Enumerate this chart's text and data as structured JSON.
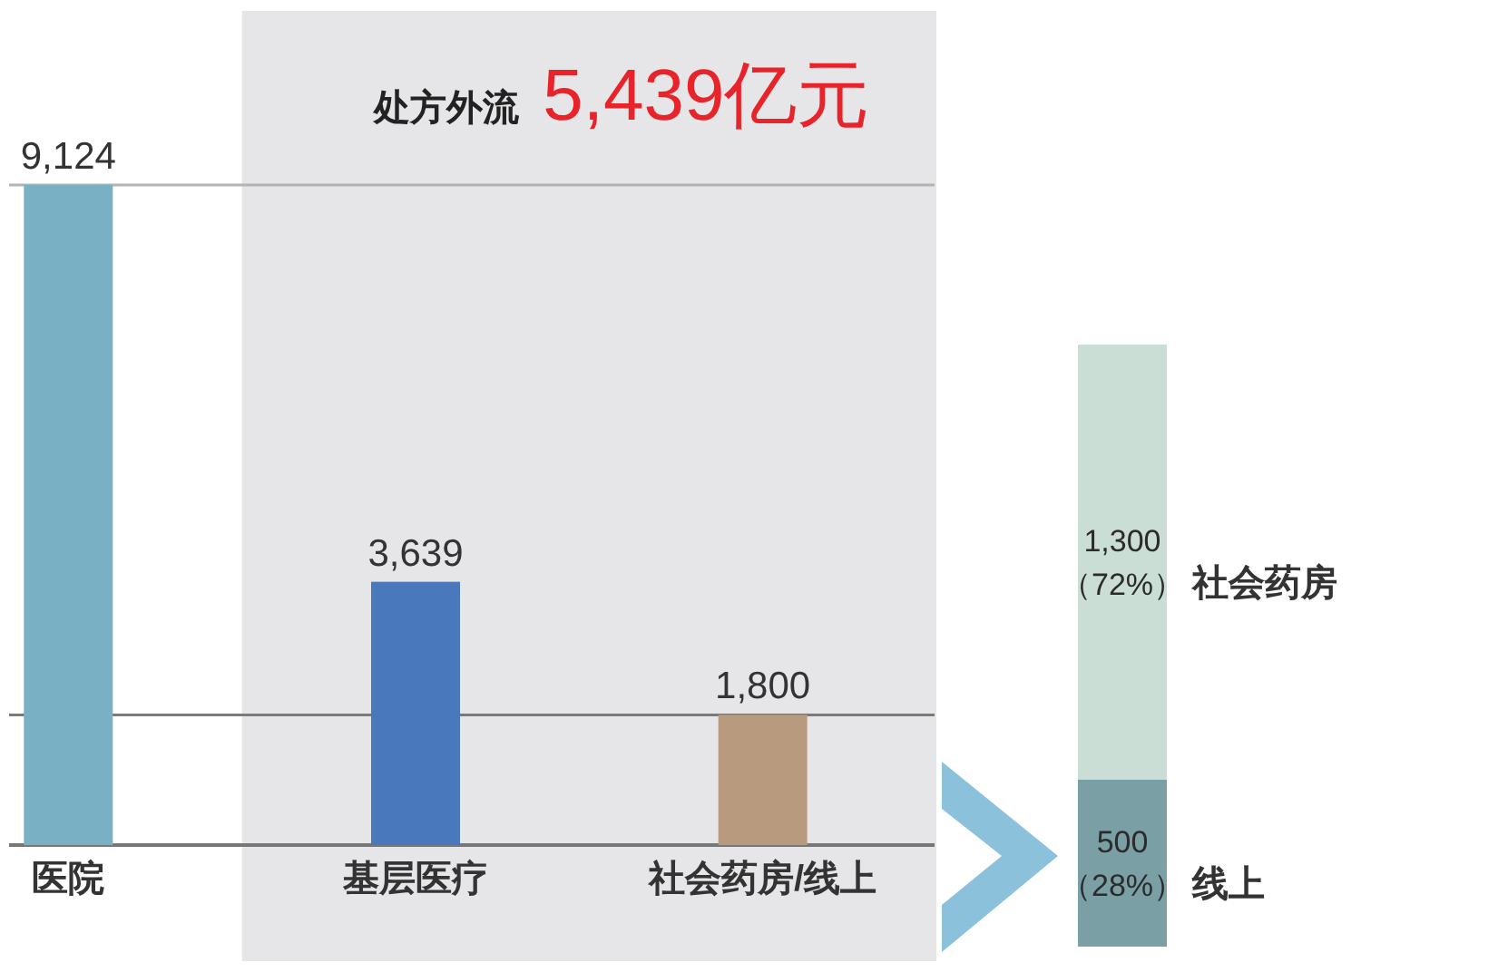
{
  "chart_data": [
    {
      "type": "bar",
      "categories": [
        "医院",
        "基层医疗",
        "社会药房/线上"
      ],
      "values": [
        9124,
        3639,
        1800
      ],
      "colors": [
        "#7ab0c4",
        "#4a78bd",
        "#b89b7e"
      ],
      "value_labels": [
        "9,124",
        "3,639",
        "1,800"
      ],
      "ref_lines": [
        {
          "axis": "y",
          "value": 9124,
          "color": "#b4b4b4"
        },
        {
          "axis": "y",
          "value": 1800,
          "color": "#7a7a7a"
        }
      ],
      "bands": [
        {
          "axis": "x",
          "from": "基层医疗",
          "to": "社会药房/线上",
          "label": "处方外流",
          "color": "#e6e6e9"
        }
      ],
      "annotations": [
        "5,439亿元"
      ],
      "tick_labels": "x"
    },
    {
      "type": "bar",
      "stacked": true,
      "categories": [
        null
      ],
      "series": [
        {
          "name": "线上",
          "color": "#7aa0a6",
          "values": [
            500
          ],
          "value_labels": [
            "500\n（28%）"
          ]
        },
        {
          "name": "社会药房",
          "color": "#cbded5",
          "values": [
            1300
          ],
          "value_labels": [
            "1,300\n（72%）"
          ]
        }
      ],
      "tick_labels": false
    }
  ]
}
